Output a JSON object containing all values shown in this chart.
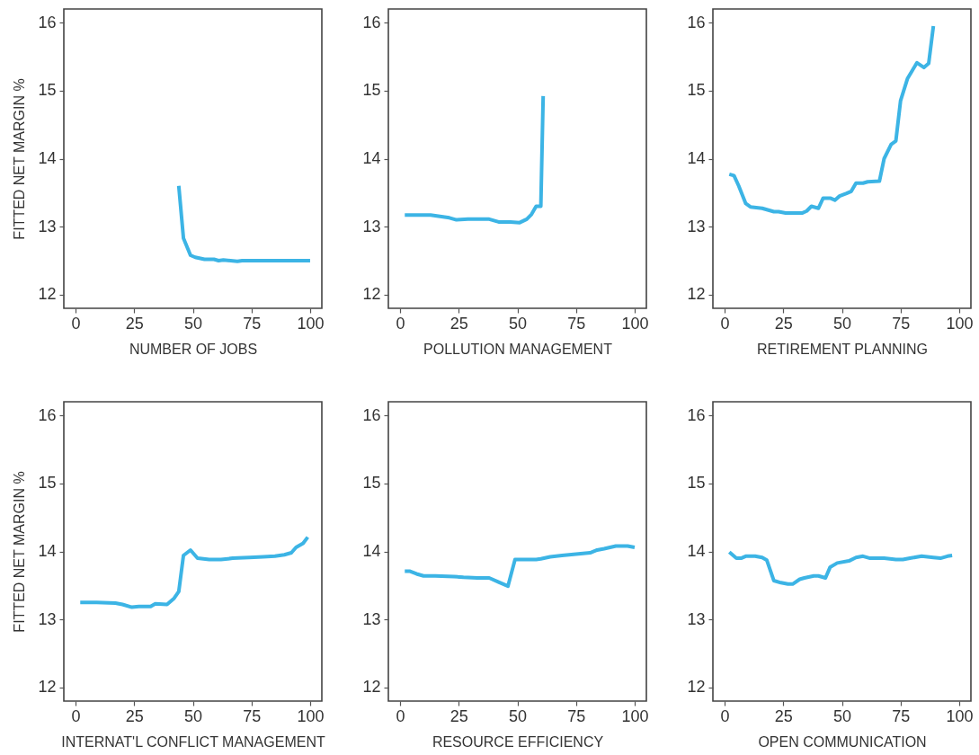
{
  "chart_data": [
    {
      "type": "line",
      "xlabel": "NUMBER OF JOBS",
      "ylabel": "FITTED NET MARGIN %",
      "x": [
        44,
        46,
        49,
        51,
        55,
        59,
        61,
        63,
        69,
        71,
        80,
        90,
        100
      ],
      "series": [
        {
          "color": "#3cb4e5",
          "values": [
            13.6,
            12.83,
            12.58,
            12.55,
            12.52,
            12.52,
            12.5,
            12.51,
            12.49,
            12.5,
            12.5,
            12.5,
            12.5
          ]
        }
      ],
      "xlim": [
        -5,
        105
      ],
      "ylim": [
        11.8,
        16.2
      ],
      "xticks": [
        0,
        25,
        50,
        75,
        100
      ],
      "yticks": [
        12,
        13,
        14,
        15,
        16
      ]
    },
    {
      "type": "line",
      "xlabel": "POLLUTION MANAGEMENT",
      "x": [
        2,
        6,
        13,
        17,
        21,
        24,
        29,
        38,
        42,
        47,
        51,
        54,
        56,
        58,
        60,
        61
      ],
      "series": [
        {
          "color": "#3cb4e5",
          "values": [
            13.17,
            13.17,
            13.17,
            13.15,
            13.13,
            13.1,
            13.11,
            13.11,
            13.07,
            13.07,
            13.06,
            13.11,
            13.18,
            13.3,
            13.3,
            14.92
          ]
        }
      ],
      "xlim": [
        -5,
        105
      ],
      "ylim": [
        11.8,
        16.2
      ],
      "xticks": [
        0,
        25,
        50,
        75,
        100
      ],
      "yticks": [
        12,
        13,
        14,
        15,
        16
      ]
    },
    {
      "type": "line",
      "xlabel": "RETIREMENT PLANNING",
      "x": [
        2,
        4,
        6,
        9,
        11,
        16,
        18,
        21,
        23,
        26,
        33,
        35,
        37,
        40,
        42,
        45,
        47,
        49,
        52,
        54,
        56,
        59,
        61,
        66,
        68,
        71,
        73,
        75,
        78,
        82,
        85,
        87,
        89
      ],
      "series": [
        {
          "color": "#3cb4e5",
          "values": [
            13.77,
            13.75,
            13.6,
            13.34,
            13.29,
            13.27,
            13.25,
            13.22,
            13.22,
            13.2,
            13.2,
            13.23,
            13.3,
            13.27,
            13.42,
            13.42,
            13.39,
            13.45,
            13.49,
            13.52,
            13.64,
            13.64,
            13.66,
            13.67,
            14.0,
            14.21,
            14.26,
            14.85,
            15.18,
            15.41,
            15.34,
            15.4,
            15.95
          ]
        }
      ],
      "xlim": [
        -5,
        105
      ],
      "ylim": [
        11.8,
        16.2
      ],
      "xticks": [
        0,
        25,
        50,
        75,
        100
      ],
      "yticks": [
        12,
        13,
        14,
        15,
        16
      ]
    },
    {
      "type": "line",
      "xlabel": "INTERNAT'L CONFLICT MANAGEMENT",
      "ylabel": "FITTED NET MARGIN %",
      "x": [
        2,
        9,
        17,
        20,
        24,
        27,
        32,
        34,
        39,
        42,
        44,
        46,
        49,
        52,
        57,
        62,
        67,
        74,
        80,
        85,
        89,
        92,
        94,
        97,
        99
      ],
      "series": [
        {
          "color": "#3cb4e5",
          "values": [
            13.25,
            13.25,
            13.24,
            13.22,
            13.18,
            13.19,
            13.19,
            13.23,
            13.22,
            13.31,
            13.41,
            13.94,
            14.02,
            13.9,
            13.88,
            13.88,
            13.9,
            13.91,
            13.92,
            13.93,
            13.95,
            13.98,
            14.06,
            14.12,
            14.21
          ]
        }
      ],
      "xlim": [
        -5,
        105
      ],
      "ylim": [
        11.8,
        16.2
      ],
      "xticks": [
        0,
        25,
        50,
        75,
        100
      ],
      "yticks": [
        12,
        13,
        14,
        15,
        16
      ]
    },
    {
      "type": "line",
      "xlabel": "RESOURCE EFFICIENCY",
      "x": [
        2,
        4,
        7,
        10,
        15,
        23,
        27,
        33,
        38,
        42,
        46,
        49,
        52,
        58,
        60,
        64,
        69,
        75,
        81,
        84,
        87,
        92,
        97,
        100
      ],
      "series": [
        {
          "color": "#3cb4e5",
          "values": [
            13.71,
            13.71,
            13.67,
            13.64,
            13.64,
            13.63,
            13.62,
            13.61,
            13.61,
            13.55,
            13.49,
            13.88,
            13.88,
            13.88,
            13.89,
            13.92,
            13.94,
            13.96,
            13.98,
            14.02,
            14.04,
            14.08,
            14.08,
            14.06
          ]
        }
      ],
      "xlim": [
        -5,
        105
      ],
      "ylim": [
        11.8,
        16.2
      ],
      "xticks": [
        0,
        25,
        50,
        75,
        100
      ],
      "yticks": [
        12,
        13,
        14,
        15,
        16
      ]
    },
    {
      "type": "line",
      "xlabel": "OPEN COMMUNICATION",
      "x": [
        2,
        5,
        7,
        9,
        13,
        16,
        18,
        21,
        24,
        27,
        29,
        32,
        34,
        38,
        40,
        43,
        45,
        48,
        53,
        56,
        59,
        62,
        68,
        73,
        76,
        79,
        84,
        89,
        92,
        95,
        97
      ],
      "series": [
        {
          "color": "#3cb4e5",
          "values": [
            13.99,
            13.9,
            13.9,
            13.93,
            13.93,
            13.91,
            13.87,
            13.57,
            13.54,
            13.52,
            13.52,
            13.59,
            13.61,
            13.64,
            13.64,
            13.61,
            13.77,
            13.83,
            13.86,
            13.91,
            13.93,
            13.9,
            13.9,
            13.88,
            13.88,
            13.9,
            13.93,
            13.91,
            13.9,
            13.93,
            13.94
          ]
        }
      ],
      "xlim": [
        -5,
        105
      ],
      "ylim": [
        11.8,
        16.2
      ],
      "xticks": [
        0,
        25,
        50,
        75,
        100
      ],
      "yticks": [
        12,
        13,
        14,
        15,
        16
      ]
    }
  ]
}
